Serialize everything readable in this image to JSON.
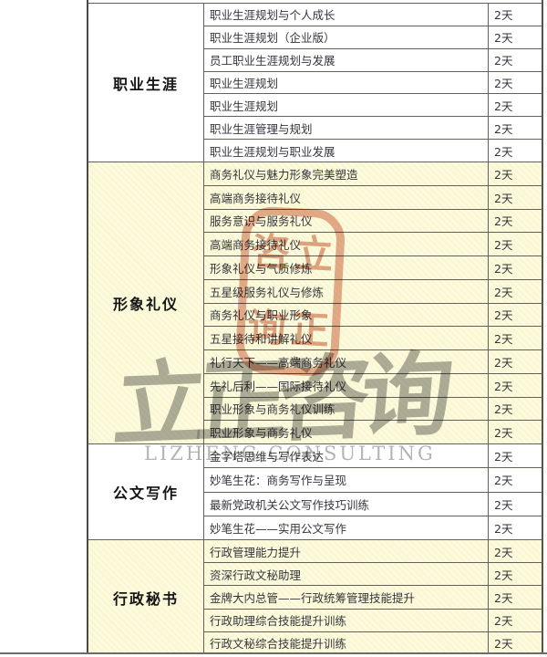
{
  "table": {
    "duration_label_default": "2天",
    "sections": [
      {
        "category": "职业生涯",
        "style": "white",
        "rows": [
          {
            "course": "职业生涯规划与个人成长",
            "days": "2天"
          },
          {
            "course": "职业生涯规划（企业版）",
            "days": "2天"
          },
          {
            "course": "员工职业生涯规划与发展",
            "days": "2天"
          },
          {
            "course": "职业生涯规划",
            "days": "2天"
          },
          {
            "course": "职业生涯规划",
            "days": "2天"
          },
          {
            "course": "职业生涯管理与规划",
            "days": "2天"
          },
          {
            "course": "职业生涯规划与职业发展",
            "days": "2天"
          }
        ]
      },
      {
        "category": "形象礼仪",
        "style": "yellow",
        "rows": [
          {
            "course": "商务礼仪与魅力形象完美塑造",
            "days": "2天"
          },
          {
            "course": "高端商务接待礼仪",
            "days": "2天"
          },
          {
            "course": "服务意识与服务礼仪",
            "days": "2天"
          },
          {
            "course": "高端商务接待礼仪",
            "days": "2天"
          },
          {
            "course": "形象礼仪与气质修炼",
            "days": "2天"
          },
          {
            "course": "五星级服务礼仪与修炼",
            "days": "2天"
          },
          {
            "course": "商务礼仪与职业形象",
            "days": "2天"
          },
          {
            "course": "五星接待和讲解礼仪",
            "days": "2天"
          },
          {
            "course": "礼行天下——高端商务礼仪",
            "days": "2天"
          },
          {
            "course": "先礼后利——国际接待礼仪",
            "days": "2天"
          },
          {
            "course": "职业形象与商务礼仪训练",
            "days": "2天"
          },
          {
            "course": "职业形象与商务礼仪",
            "days": "2天"
          }
        ]
      },
      {
        "category": "公文写作",
        "style": "white",
        "rows": [
          {
            "course": "金字塔思维与写作表达",
            "days": "2天"
          },
          {
            "course": "妙笔生花：商务写作与呈现",
            "days": "2天"
          },
          {
            "course": "最新党政机关公文写作技巧训练",
            "days": "2天"
          },
          {
            "course": "妙笔生花——实用公文写作",
            "days": "2天"
          }
        ]
      },
      {
        "category": "行政秘书",
        "style": "yellow",
        "rows": [
          {
            "course": "行政管理能力提升",
            "days": "2天"
          },
          {
            "course": "资深行政文秘助理",
            "days": "2天"
          },
          {
            "course": "金牌大内总管——行政统筹管理技能提升",
            "days": "2天"
          },
          {
            "course": "行政助理综合技能提升训练",
            "days": "2天"
          },
          {
            "course": "行政文秘综合技能提升训练",
            "days": "2天"
          }
        ]
      }
    ]
  },
  "watermark": {
    "seal_chars": [
      "立",
      "咨",
      "正",
      "询"
    ],
    "seal_color": "#c95c3a",
    "gray_text": "立正咨询",
    "gray_color": "#6e6e6e",
    "latin_text": "LIZHENG CONSULTING"
  },
  "colors": {
    "section_yellow": "#faf8d2",
    "grid_line": "#62625a",
    "text": "#35353c"
  }
}
